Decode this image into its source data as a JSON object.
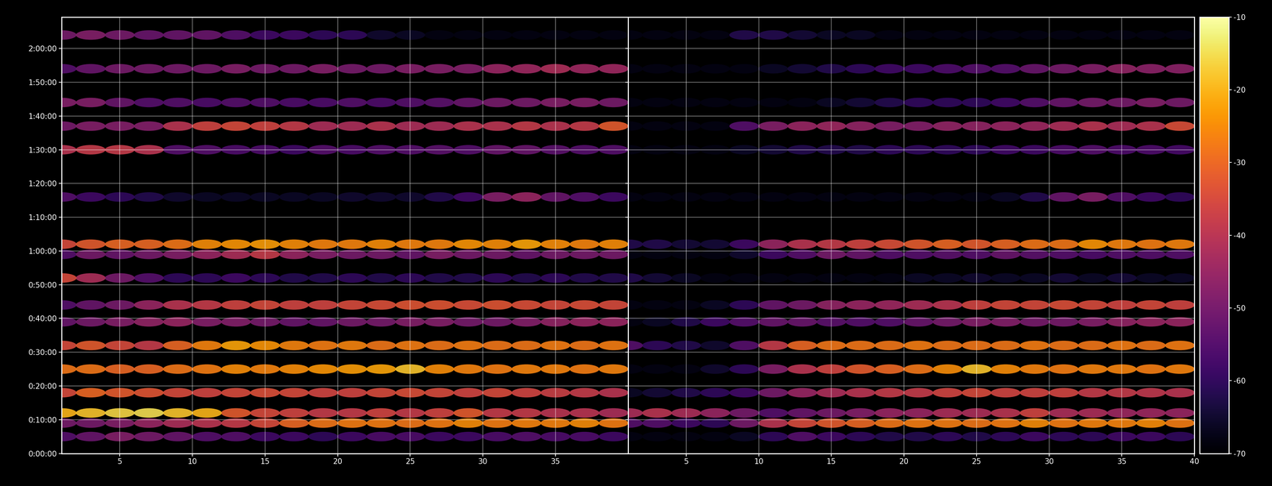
{
  "chart_data": [
    {
      "type": "heatmap",
      "x": [
        1,
        3,
        5,
        7,
        9,
        11,
        13,
        15,
        17,
        19,
        21,
        23,
        25,
        27,
        29,
        31,
        33,
        35,
        37,
        39
      ],
      "y": [
        300,
        540,
        720,
        1080,
        1500,
        1920,
        2340,
        2640,
        3120,
        3540,
        3720,
        4560,
        5400,
        5820,
        6240,
        6840,
        7440
      ],
      "cells": [
        [
          -55,
          -52,
          -48,
          -50,
          -52,
          -55,
          -55,
          -58,
          -58,
          -60,
          -58,
          -56,
          -56,
          -58,
          -58,
          -56,
          -55,
          -56,
          -56,
          -58
        ],
        [
          -50,
          -50,
          -48,
          -45,
          -42,
          -40,
          -38,
          -35,
          -30,
          -28,
          -27,
          -27,
          -28,
          -27,
          -25,
          -27,
          -26,
          -26,
          -25,
          -27
        ],
        [
          -20,
          -18,
          -16,
          -15,
          -18,
          -20,
          -32,
          -35,
          -36,
          -38,
          -38,
          -36,
          -38,
          -36,
          -32,
          -38,
          -38,
          -40,
          -40,
          -42
        ],
        [
          -35,
          -30,
          -32,
          -33,
          -35,
          -36,
          -35,
          -34,
          -35,
          -36,
          -36,
          -35,
          -34,
          -35,
          -36,
          -35,
          -36,
          -37,
          -38,
          -40
        ],
        [
          -28,
          -28,
          -30,
          -30,
          -28,
          -27,
          -25,
          -26,
          -25,
          -24,
          -23,
          -22,
          -18,
          -25,
          -26,
          -27,
          -26,
          -26,
          -27,
          -26
        ],
        [
          -35,
          -32,
          -35,
          -38,
          -30,
          -26,
          -22,
          -24,
          -26,
          -27,
          -26,
          -28,
          -27,
          -28,
          -27,
          -28,
          -28,
          -27,
          -28,
          -27
        ],
        [
          -52,
          -50,
          -48,
          -46,
          -45,
          -48,
          -48,
          -50,
          -52,
          -52,
          -50,
          -50,
          -48,
          -48,
          -50,
          -50,
          -48,
          -46,
          -45,
          -45
        ],
        [
          -55,
          -52,
          -50,
          -45,
          -40,
          -38,
          -36,
          -35,
          -36,
          -36,
          -35,
          -34,
          -33,
          -33,
          -34,
          -33,
          -34,
          -35,
          -34,
          -35
        ],
        [
          -35,
          -42,
          -50,
          -55,
          -60,
          -60,
          -58,
          -60,
          -62,
          -62,
          -60,
          -62,
          -60,
          -62,
          -62,
          -60,
          -62,
          -60,
          -62,
          -62
        ],
        [
          -55,
          -50,
          -52,
          -50,
          -48,
          -45,
          -42,
          -38,
          -45,
          -48,
          -50,
          -50,
          -52,
          -48,
          -50,
          -50,
          -52,
          -50,
          -50,
          -50
        ],
        [
          -35,
          -32,
          -30,
          -30,
          -28,
          -25,
          -24,
          -23,
          -25,
          -26,
          -26,
          -25,
          -26,
          -26,
          -24,
          -25,
          -22,
          -25,
          -26,
          -25
        ],
        [
          -55,
          -58,
          -60,
          -62,
          -65,
          -66,
          -66,
          -66,
          -66,
          -66,
          -65,
          -65,
          -65,
          -62,
          -58,
          -48,
          -45,
          -52,
          -55,
          -58
        ],
        [
          -40,
          -38,
          -38,
          -40,
          -55,
          -55,
          -56,
          -56,
          -58,
          -55,
          -56,
          -55,
          -55,
          -54,
          -55,
          -52,
          -52,
          -54,
          -55,
          -55
        ],
        [
          -50,
          -48,
          -48,
          -48,
          -40,
          -36,
          -35,
          -36,
          -38,
          -42,
          -42,
          -40,
          -42,
          -42,
          -40,
          -40,
          -38,
          -40,
          -38,
          -32
        ],
        [
          -48,
          -48,
          -52,
          -55,
          -55,
          -56,
          -55,
          -55,
          -56,
          -56,
          -55,
          -56,
          -55,
          -54,
          -52,
          -50,
          -50,
          -48,
          -48,
          -50
        ],
        [
          -55,
          -52,
          -50,
          -50,
          -50,
          -50,
          -48,
          -50,
          -50,
          -48,
          -50,
          -50,
          -48,
          -48,
          -48,
          -45,
          -44,
          -42,
          -44,
          -44
        ],
        [
          -50,
          -48,
          -50,
          -52,
          -52,
          -52,
          -55,
          -58,
          -58,
          -60,
          -60,
          -65,
          -66,
          -68,
          -68,
          -68,
          -68,
          -68,
          -68,
          -68
        ]
      ],
      "xlim": [
        1,
        40
      ],
      "ylim": [
        0,
        7760
      ],
      "xticks": [
        5,
        10,
        15,
        20,
        25,
        30,
        35
      ],
      "yticks": [
        {
          "value": 0,
          "label": "0:00:00"
        },
        {
          "value": 600,
          "label": "0:10:00"
        },
        {
          "value": 1200,
          "label": "0:20:00"
        },
        {
          "value": 1800,
          "label": "0:30:00"
        },
        {
          "value": 2400,
          "label": "0:40:00"
        },
        {
          "value": 3000,
          "label": "0:50:00"
        },
        {
          "value": 3600,
          "label": "1:00:00"
        },
        {
          "value": 4200,
          "label": "1:10:00"
        },
        {
          "value": 4800,
          "label": "1:20:00"
        },
        {
          "value": 5400,
          "label": "1:30:00"
        },
        {
          "value": 6000,
          "label": "1:40:00"
        },
        {
          "value": 6600,
          "label": "1:50:00"
        },
        {
          "value": 7200,
          "label": "2:00:00"
        }
      ],
      "grid": true
    },
    {
      "type": "heatmap",
      "x": [
        1,
        3,
        5,
        7,
        9,
        11,
        13,
        15,
        17,
        19,
        21,
        23,
        25,
        27,
        29,
        31,
        33,
        35,
        37,
        39
      ],
      "y": [
        300,
        540,
        720,
        1080,
        1500,
        1920,
        2340,
        2640,
        3120,
        3540,
        3720,
        4560,
        5400,
        5820,
        6240,
        6840,
        7440
      ],
      "cells": [
        [
          -68,
          -68,
          -68,
          -68,
          -66,
          -60,
          -55,
          -58,
          -60,
          -62,
          -62,
          -60,
          -62,
          -60,
          -58,
          -60,
          -60,
          -58,
          -58,
          -60
        ],
        [
          -55,
          -55,
          -58,
          -60,
          -50,
          -40,
          -35,
          -32,
          -30,
          -28,
          -27,
          -27,
          -28,
          -27,
          -25,
          -27,
          -26,
          -26,
          -25,
          -27
        ],
        [
          -42,
          -40,
          -42,
          -45,
          -50,
          -55,
          -52,
          -50,
          -48,
          -45,
          -45,
          -42,
          -42,
          -40,
          -36,
          -42,
          -42,
          -44,
          -44,
          -45
        ],
        [
          -66,
          -64,
          -62,
          -60,
          -58,
          -50,
          -45,
          -42,
          -40,
          -38,
          -38,
          -36,
          -35,
          -36,
          -36,
          -36,
          -38,
          -38,
          -39,
          -40
        ],
        [
          -68,
          -68,
          -68,
          -65,
          -60,
          -48,
          -40,
          -36,
          -32,
          -30,
          -28,
          -25,
          -18,
          -25,
          -26,
          -27,
          -26,
          -26,
          -27,
          -26
        ],
        [
          -55,
          -60,
          -62,
          -65,
          -55,
          -38,
          -30,
          -28,
          -28,
          -28,
          -27,
          -28,
          -28,
          -28,
          -27,
          -28,
          -28,
          -27,
          -28,
          -27
        ],
        [
          -68,
          -66,
          -62,
          -58,
          -55,
          -52,
          -52,
          -54,
          -55,
          -55,
          -52,
          -50,
          -48,
          -48,
          -50,
          -50,
          -48,
          -46,
          -45,
          -45
        ],
        [
          -68,
          -68,
          -68,
          -66,
          -60,
          -52,
          -50,
          -46,
          -45,
          -44,
          -42,
          -40,
          -36,
          -35,
          -35,
          -34,
          -35,
          -36,
          -35,
          -36
        ],
        [
          -62,
          -64,
          -66,
          -68,
          -68,
          -68,
          -68,
          -68,
          -68,
          -68,
          -66,
          -66,
          -65,
          -66,
          -66,
          -64,
          -66,
          -64,
          -66,
          -66
        ],
        [
          -68,
          -68,
          -68,
          -68,
          -65,
          -58,
          -55,
          -50,
          -52,
          -55,
          -55,
          -54,
          -55,
          -52,
          -54,
          -55,
          -56,
          -55,
          -55,
          -55
        ],
        [
          -62,
          -62,
          -64,
          -64,
          -58,
          -45,
          -40,
          -38,
          -36,
          -34,
          -32,
          -30,
          -32,
          -30,
          -28,
          -28,
          -24,
          -26,
          -27,
          -26
        ],
        [
          -68,
          -68,
          -68,
          -68,
          -68,
          -68,
          -68,
          -68,
          -68,
          -68,
          -68,
          -68,
          -68,
          -66,
          -62,
          -52,
          -48,
          -55,
          -58,
          -60
        ],
        [
          -68,
          -68,
          -68,
          -68,
          -66,
          -64,
          -62,
          -62,
          -62,
          -60,
          -60,
          -60,
          -60,
          -58,
          -58,
          -56,
          -55,
          -56,
          -56,
          -57
        ],
        [
          -68,
          -68,
          -68,
          -68,
          -55,
          -48,
          -45,
          -44,
          -46,
          -48,
          -48,
          -46,
          -46,
          -45,
          -44,
          -42,
          -40,
          -42,
          -40,
          -34
        ],
        [
          -68,
          -68,
          -68,
          -68,
          -68,
          -68,
          -68,
          -66,
          -64,
          -62,
          -60,
          -60,
          -60,
          -58,
          -55,
          -52,
          -50,
          -50,
          -48,
          -50
        ],
        [
          -68,
          -68,
          -68,
          -68,
          -68,
          -66,
          -64,
          -62,
          -60,
          -58,
          -58,
          -56,
          -55,
          -55,
          -52,
          -50,
          -48,
          -46,
          -47,
          -47
        ],
        [
          -68,
          -68,
          -68,
          -68,
          -62,
          -62,
          -64,
          -66,
          -66,
          -68,
          -68,
          -68,
          -68,
          -68,
          -68,
          -68,
          -68,
          -68,
          -68,
          -68
        ]
      ],
      "xlim": [
        1,
        40
      ],
      "ylim": [
        0,
        7760
      ],
      "xticks": [
        5,
        10,
        15,
        20,
        25,
        30,
        35,
        40
      ],
      "yticks": [
        {
          "value": 0,
          "label": "0:00:00"
        },
        {
          "value": 600,
          "label": "0:10:00"
        },
        {
          "value": 1200,
          "label": "0:20:00"
        },
        {
          "value": 1800,
          "label": "0:30:00"
        },
        {
          "value": 2400,
          "label": "0:40:00"
        },
        {
          "value": 3000,
          "label": "0:50:00"
        },
        {
          "value": 3600,
          "label": "1:00:00"
        },
        {
          "value": 4200,
          "label": "1:10:00"
        },
        {
          "value": 4800,
          "label": "1:20:00"
        },
        {
          "value": 5400,
          "label": "1:30:00"
        },
        {
          "value": 6000,
          "label": "1:40:00"
        },
        {
          "value": 6600,
          "label": "1:50:00"
        },
        {
          "value": 7200,
          "label": "2:00:00"
        }
      ],
      "grid": true,
      "tick_labels": "x",
      "colorbar_range": [
        -70,
        -10
      ],
      "colorbar_ticks": [
        -70,
        -60,
        -50,
        -40,
        -30,
        -20,
        -10
      ]
    }
  ]
}
